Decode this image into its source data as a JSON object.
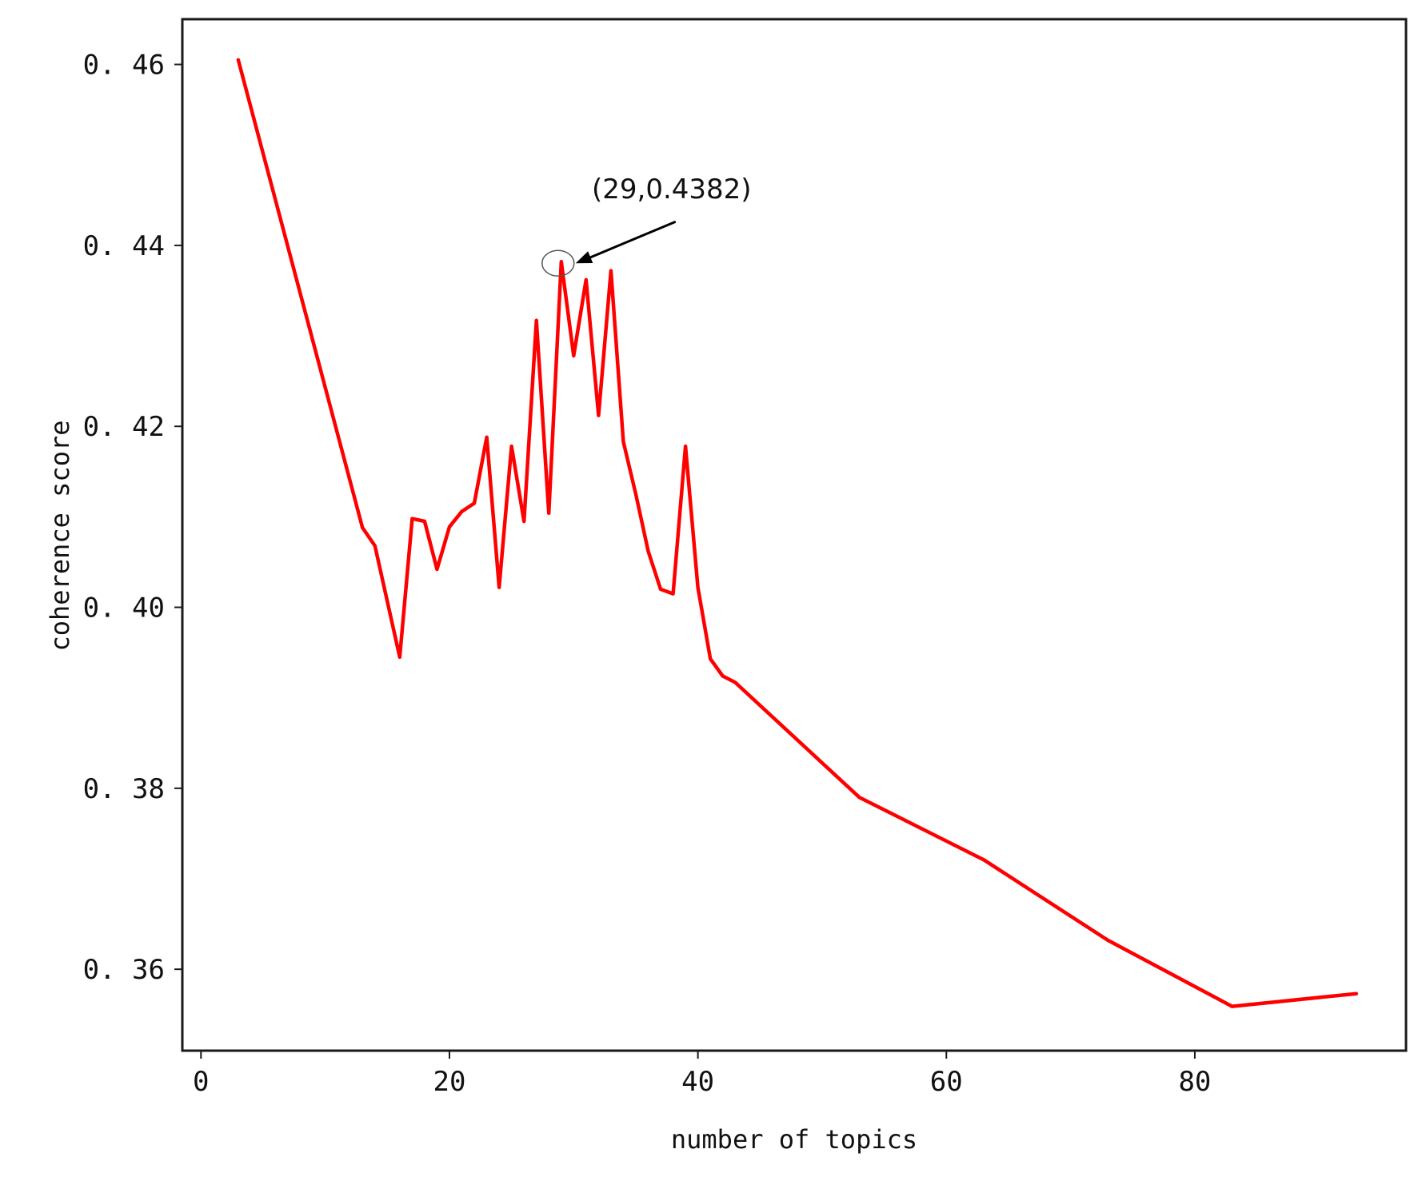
{
  "chart_data": {
    "type": "line",
    "title": "",
    "xlabel": "number of topics",
    "ylabel": "coherence score",
    "xlim": [
      -1.5,
      97
    ],
    "ylim": [
      0.351,
      0.465
    ],
    "xticks": [
      0,
      20,
      40,
      60,
      80
    ],
    "yticks": [
      0.36,
      0.38,
      0.4,
      0.42,
      0.44,
      0.46
    ],
    "xtick_labels": [
      "0",
      "20",
      "40",
      "60",
      "80"
    ],
    "ytick_labels": [
      "0. 36",
      "0. 38",
      "0. 40",
      "0. 42",
      "0. 44",
      "0. 46"
    ],
    "grid": false,
    "legend": "none",
    "series": [
      {
        "color": "#ff0000",
        "x": [
          3,
          13,
          14,
          16,
          17,
          18,
          19,
          20,
          21,
          22,
          23,
          24,
          25,
          26,
          27,
          28,
          29,
          30,
          31,
          32,
          33,
          34,
          35,
          36,
          37,
          38,
          39,
          40,
          41,
          42,
          43,
          53,
          63,
          73,
          83,
          93
        ],
        "y": [
          0.4605,
          0.4088,
          0.4068,
          0.3945,
          0.4098,
          0.4095,
          0.4042,
          0.4089,
          0.4106,
          0.4115,
          0.4188,
          0.4022,
          0.4178,
          0.4095,
          0.4317,
          0.4104,
          0.4382,
          0.4278,
          0.4362,
          0.4212,
          0.4372,
          0.4183,
          0.4125,
          0.4062,
          0.402,
          0.4015,
          0.4178,
          0.4022,
          0.3943,
          0.3924,
          0.3917,
          0.379,
          0.3721,
          0.3632,
          0.3559,
          0.3573
        ]
      }
    ],
    "annotations": [
      {
        "text": "(29,0.4382)",
        "x": 29,
        "y": 0.4382
      }
    ]
  }
}
